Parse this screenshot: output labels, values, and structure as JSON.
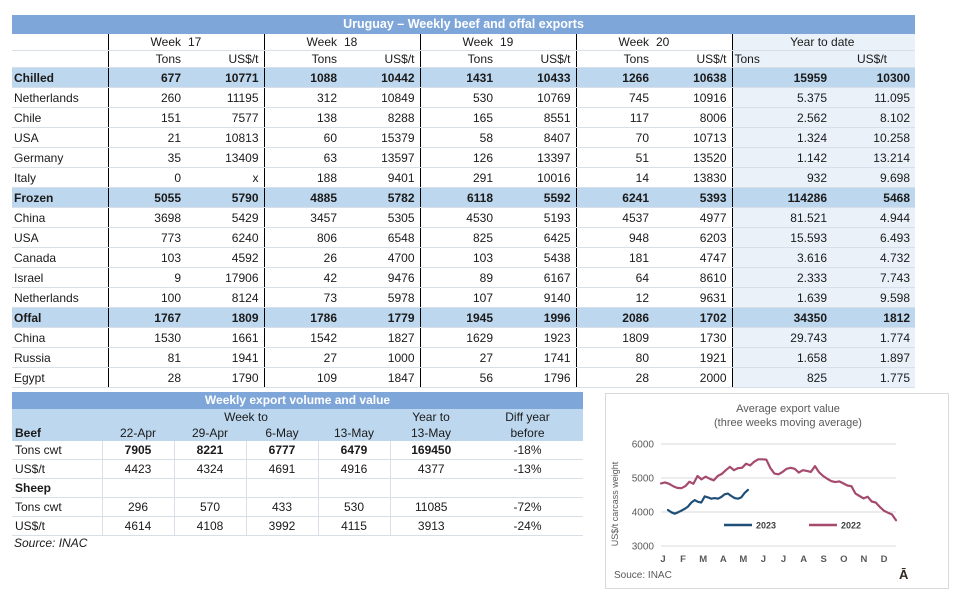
{
  "colors": {
    "title_bar": "#7ea6d9",
    "section_row": "#bdd7ee",
    "ytd_tint": "#eaf1f9",
    "gridline": "#d9dfe9",
    "series_2023": "#1f4e79",
    "series_2022": "#a54a6e"
  },
  "top_table": {
    "title": "Uruguay – Weekly beef and offal exports",
    "week_label": "Week",
    "week_numbers": [
      "17",
      "18",
      "19",
      "20"
    ],
    "ytd_label": "Year to date",
    "tons_label": "Tons",
    "usdt_label": "US$/t",
    "rows": [
      {
        "label": "Chilled",
        "section": true,
        "values": [
          "677",
          "10771",
          "1088",
          "10442",
          "1431",
          "10433",
          "1266",
          "10638",
          "15959",
          "10300"
        ]
      },
      {
        "label": "Netherlands",
        "section": false,
        "values": [
          "260",
          "11195",
          "312",
          "10849",
          "530",
          "10769",
          "745",
          "10916",
          "5.375",
          "11.095"
        ]
      },
      {
        "label": "Chile",
        "section": false,
        "values": [
          "151",
          "7577",
          "138",
          "8288",
          "165",
          "8551",
          "117",
          "8006",
          "2.562",
          "8.102"
        ]
      },
      {
        "label": "USA",
        "section": false,
        "values": [
          "21",
          "10813",
          "60",
          "15379",
          "58",
          "8407",
          "70",
          "10713",
          "1.324",
          "10.258"
        ]
      },
      {
        "label": "Germany",
        "section": false,
        "values": [
          "35",
          "13409",
          "63",
          "13597",
          "126",
          "13397",
          "51",
          "13520",
          "1.142",
          "13.214"
        ]
      },
      {
        "label": "Italy",
        "section": false,
        "values": [
          "0",
          "x",
          "188",
          "9401",
          "291",
          "10016",
          "14",
          "13830",
          "932",
          "9.698"
        ]
      },
      {
        "label": "Frozen",
        "section": true,
        "values": [
          "5055",
          "5790",
          "4885",
          "5782",
          "6118",
          "5592",
          "6241",
          "5393",
          "114286",
          "5468"
        ]
      },
      {
        "label": "China",
        "section": false,
        "values": [
          "3698",
          "5429",
          "3457",
          "5305",
          "4530",
          "5193",
          "4537",
          "4977",
          "81.521",
          "4.944"
        ]
      },
      {
        "label": "USA",
        "section": false,
        "values": [
          "773",
          "6240",
          "806",
          "6548",
          "825",
          "6425",
          "948",
          "6203",
          "15.593",
          "6.493"
        ]
      },
      {
        "label": "Canada",
        "section": false,
        "values": [
          "103",
          "4592",
          "26",
          "4700",
          "103",
          "5438",
          "181",
          "4747",
          "3.616",
          "4.732"
        ]
      },
      {
        "label": "Israel",
        "section": false,
        "values": [
          "9",
          "17906",
          "42",
          "9476",
          "89",
          "6167",
          "64",
          "8610",
          "2.333",
          "7.743"
        ]
      },
      {
        "label": "Netherlands",
        "section": false,
        "values": [
          "100",
          "8124",
          "73",
          "5978",
          "107",
          "9140",
          "12",
          "9631",
          "1.639",
          "9.598"
        ]
      },
      {
        "label": "Offal",
        "section": true,
        "values": [
          "1767",
          "1809",
          "1786",
          "1779",
          "1945",
          "1996",
          "2086",
          "1702",
          "34350",
          "1812"
        ]
      },
      {
        "label": "China",
        "section": false,
        "values": [
          "1530",
          "1661",
          "1542",
          "1827",
          "1629",
          "1923",
          "1809",
          "1730",
          "29.743",
          "1.774"
        ]
      },
      {
        "label": "Russia",
        "section": false,
        "values": [
          "81",
          "1941",
          "27",
          "1000",
          "27",
          "1741",
          "80",
          "1921",
          "1.658",
          "1.897"
        ]
      },
      {
        "label": "Egypt",
        "section": false,
        "values": [
          "28",
          "1790",
          "109",
          "1847",
          "56",
          "1796",
          "28",
          "2000",
          "825",
          "1.775"
        ]
      }
    ]
  },
  "bottom_table": {
    "title": "Weekly export volume and value",
    "header": {
      "beef": "Beef",
      "week_to": "Week to",
      "year_to": "Year to",
      "diff_line1": "Diff year",
      "diff_line2": "before",
      "dates": [
        "22-Apr",
        "29-Apr",
        "6-May",
        "13-May"
      ],
      "year_date": "13-May"
    },
    "rows": [
      {
        "label": "Tons cwt",
        "section": false,
        "bold_values": true,
        "values": [
          "7905",
          "8221",
          "6777",
          "6479",
          "169450",
          "-18%"
        ]
      },
      {
        "label": "US$/t",
        "section": false,
        "bold_values": false,
        "values": [
          "4423",
          "4324",
          "4691",
          "4916",
          "4377",
          "-13%"
        ]
      },
      {
        "label": "Sheep",
        "section": true,
        "bold_values": false,
        "values": [
          "",
          "",
          "",
          "",
          "",
          ""
        ]
      },
      {
        "label": "Tons cwt",
        "section": false,
        "bold_values": false,
        "values": [
          "296",
          "570",
          "433",
          "530",
          "11085",
          "-72%"
        ]
      },
      {
        "label": "US$/t",
        "section": false,
        "bold_values": false,
        "values": [
          "4614",
          "4108",
          "3992",
          "4115",
          "3913",
          "-24%"
        ]
      }
    ],
    "source": "Source: INAC"
  },
  "chart_data": {
    "type": "line",
    "title": "Average export  value",
    "subtitle": "(three weeks moving average)",
    "ylabel": "US$/t carcass weight",
    "ylim": [
      3000,
      6000
    ],
    "yticks": [
      6000,
      5000,
      4000,
      3000
    ],
    "x_labels": [
      "J",
      "F",
      "M",
      "A",
      "M",
      "J",
      "J",
      "A",
      "S",
      "O",
      "N",
      "D"
    ],
    "grid": "horizontal",
    "legend_position": "bottom-inside",
    "series": [
      {
        "name": "2023",
        "color": "#1f4e79",
        "span": [
          0.03,
          0.37
        ],
        "values": [
          4060,
          3990,
          3950,
          3990,
          4040,
          4090,
          4160,
          4280,
          4350,
          4300,
          4280,
          4460,
          4430,
          4390,
          4410,
          4390,
          4440,
          4520,
          4540,
          4470,
          4410,
          4390,
          4430,
          4560,
          4650
        ]
      },
      {
        "name": "2022",
        "color": "#a54a6e",
        "span": [
          0.0,
          1.0
        ],
        "values": [
          4840,
          4870,
          4830,
          4760,
          4710,
          4700,
          4760,
          4890,
          4830,
          5060,
          4960,
          5040,
          4980,
          4930,
          5060,
          5120,
          5230,
          5330,
          5230,
          5290,
          5300,
          5420,
          5370,
          5480,
          5550,
          5550,
          5540,
          5290,
          5130,
          5110,
          5180,
          5270,
          5300,
          5270,
          5160,
          5230,
          5210,
          5180,
          5350,
          5170,
          5060,
          4980,
          4910,
          4880,
          4900,
          4840,
          4780,
          4760,
          4540,
          4470,
          4400,
          4450,
          4310,
          4280,
          4150,
          4040,
          3980,
          3930,
          3760
        ]
      }
    ],
    "source": "Souce: INAC",
    "mark": "Ā"
  }
}
